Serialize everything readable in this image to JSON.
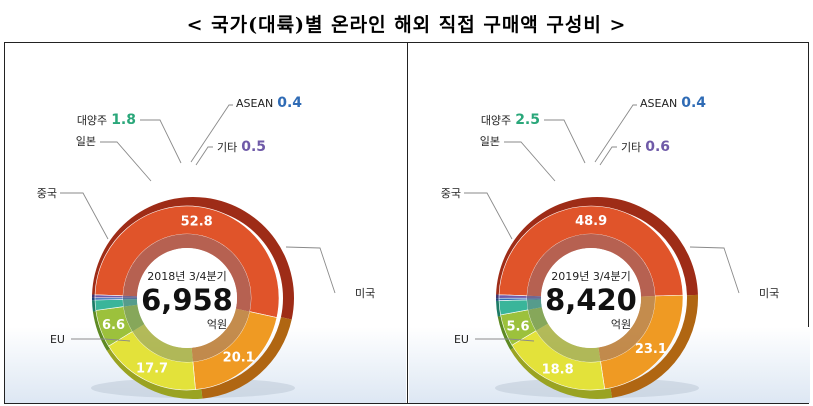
{
  "page": {
    "title": "< 국가(대륙)별 온라인 해외 직접 구매액 구성비 >"
  },
  "chart_data": [
    {
      "type": "pie",
      "period_label": "2018년 3/4분기",
      "total": "6,958",
      "unit": "억원",
      "slices": [
        {
          "label": "미국",
          "value": 52.8,
          "value_label": "52.8",
          "color": "#e0542a",
          "dark": "#9e2c17"
        },
        {
          "label": "EU",
          "value": 20.1,
          "value_label": "20.1",
          "color": "#ef9a23",
          "dark": "#b06612"
        },
        {
          "label": "중국",
          "value": 17.7,
          "value_label": "17.7",
          "color": "#e3e23a",
          "dark": "#9aa322"
        },
        {
          "label": "일본",
          "value": 6.6,
          "value_label": "6.6",
          "color": "#9cc13c",
          "dark": "#5e8a23"
        },
        {
          "label": "대양주",
          "value": 1.8,
          "value_label": "1.8",
          "color": "#3ab59a",
          "dark": "#1d7b66",
          "value_color": "#2aa77a"
        },
        {
          "label": "ASEAN",
          "value": 0.4,
          "value_label": "0.4",
          "color": "#2f6bb5",
          "dark": "#1b4277",
          "value_color": "#2f6bb5"
        },
        {
          "label": "기타",
          "value": 0.5,
          "value_label": "0.5",
          "color": "#6f5aa8",
          "dark": "#40346e",
          "value_color": "#6f5aa8"
        }
      ]
    },
    {
      "type": "pie",
      "period_label": "2019년 3/4분기",
      "total": "8,420",
      "unit": "억원",
      "slices": [
        {
          "label": "미국",
          "value": 48.9,
          "value_label": "48.9",
          "color": "#e0542a",
          "dark": "#9e2c17"
        },
        {
          "label": "EU",
          "value": 23.1,
          "value_label": "23.1",
          "color": "#ef9a23",
          "dark": "#b06612"
        },
        {
          "label": "중국",
          "value": 18.8,
          "value_label": "18.8",
          "color": "#e3e23a",
          "dark": "#9aa322"
        },
        {
          "label": "일본",
          "value": 5.6,
          "value_label": "5.6",
          "color": "#9cc13c",
          "dark": "#5e8a23"
        },
        {
          "label": "대양주",
          "value": 2.5,
          "value_label": "2.5",
          "color": "#3ab59a",
          "dark": "#1d7b66",
          "value_color": "#2aa77a"
        },
        {
          "label": "ASEAN",
          "value": 0.4,
          "value_label": "0.4",
          "color": "#2f6bb5",
          "dark": "#1b4277",
          "value_color": "#2f6bb5"
        },
        {
          "label": "기타",
          "value": 0.6,
          "value_label": "0.6",
          "color": "#6f5aa8",
          "dark": "#40346e",
          "value_color": "#6f5aa8"
        }
      ]
    }
  ]
}
